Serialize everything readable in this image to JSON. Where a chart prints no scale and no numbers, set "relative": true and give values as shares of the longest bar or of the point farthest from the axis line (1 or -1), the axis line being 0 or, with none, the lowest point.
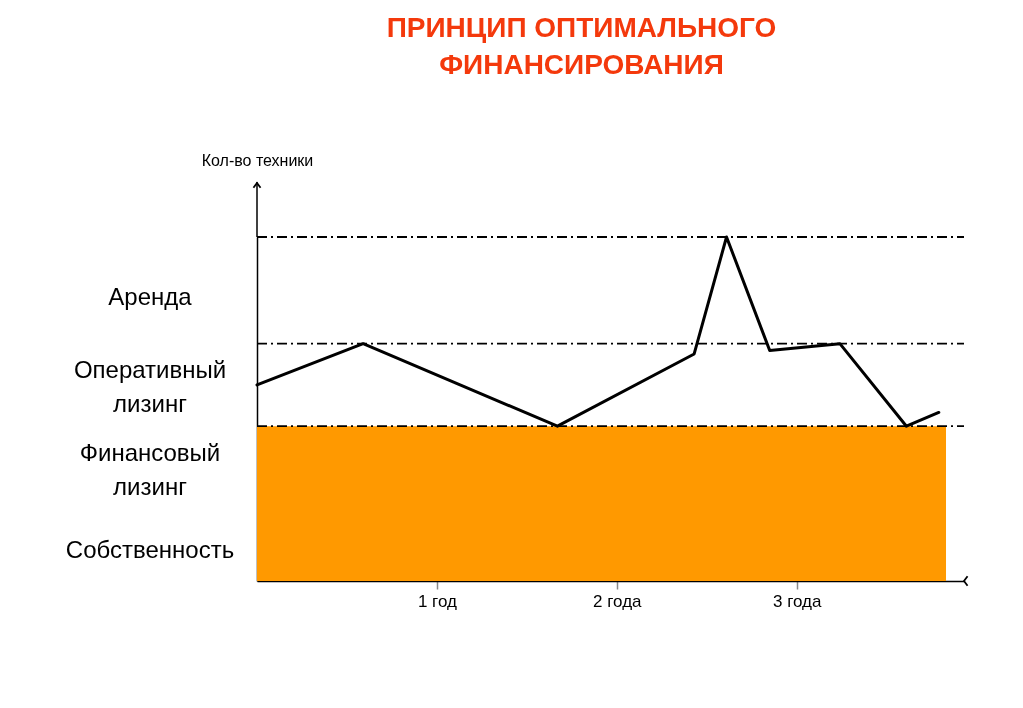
{
  "chart_data": {
    "type": "line",
    "title": "ПРИНЦИП ОПТИМАЛЬНОГО ФИНАНСИРОВАНИЯ",
    "ylabel": "Кол-во техники",
    "relative": true,
    "grid": false,
    "line_style": "solid",
    "xlim": [
      0,
      3.93
    ],
    "xticks": [
      {
        "value": 1,
        "label": "1 год"
      },
      {
        "value": 2,
        "label": "2 года"
      },
      {
        "value": 3,
        "label": "3 года"
      }
    ],
    "series": [
      {
        "type": "area",
        "color": "#ff9900",
        "x": [
          0,
          3.83
        ],
        "values": [
          0.45,
          0.45
        ]
      },
      {
        "color": "#000000",
        "x": [
          0,
          0.59,
          1.67,
          2.43,
          2.61,
          2.85,
          3.24,
          3.61,
          3.79
        ],
        "values": [
          0.57,
          0.69,
          0.45,
          0.66,
          1,
          0.67,
          0.69,
          0.45,
          0.49
        ]
      }
    ],
    "ref_lines": [
      {
        "axis": "y",
        "value": 1,
        "color": "#000000",
        "line_style": "dashed"
      },
      {
        "axis": "y",
        "value": 0.69,
        "color": "#000000",
        "line_style": "dashed"
      },
      {
        "axis": "y",
        "value": 0.45,
        "color": "#000000",
        "line_style": "dashed"
      }
    ],
    "annotations": [
      "Аренда",
      "Оперативный лизинг",
      "Финансовый лизинг",
      "Собственность"
    ]
  }
}
